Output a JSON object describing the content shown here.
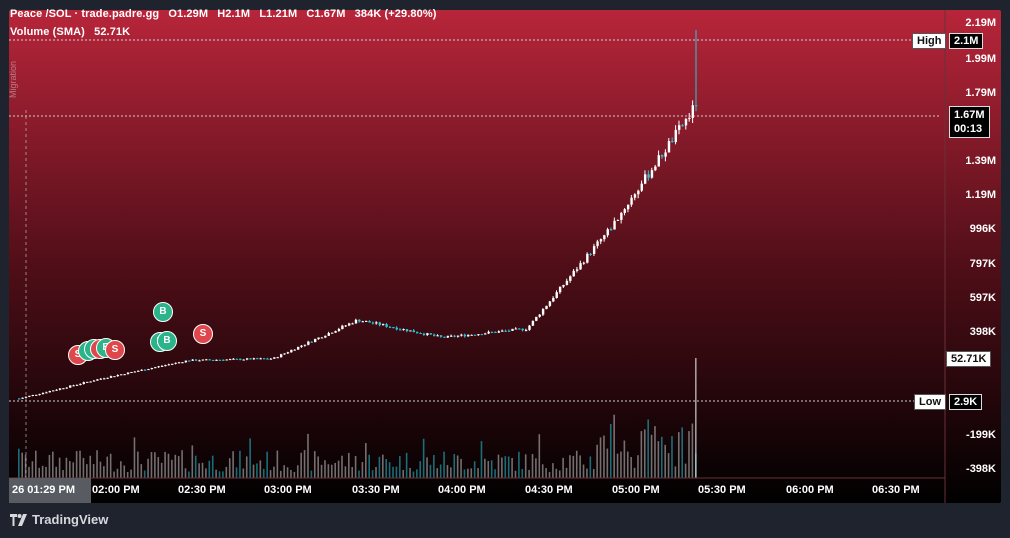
{
  "header": {
    "pair": "Peace /SOL · trade.padre.gg",
    "open": "O1.29M",
    "high": "H2.1M",
    "low": "L1.21M",
    "close": "C1.67M",
    "change": "384K (+29.80%)",
    "volume_label": "Volume (SMA)",
    "volume_value": "52.71K"
  },
  "migration_label": "Migration",
  "price_axis": {
    "ticks": [
      "2.19M",
      "1.99M",
      "1.79M",
      "1.39M",
      "1.19M",
      "996K",
      "797K",
      "597K",
      "398K",
      "-199K",
      "-398K"
    ],
    "high_label": "High",
    "high_value": "2.1M",
    "current_price": "1.67M",
    "countdown": "00:13",
    "volume_current": "52.71K",
    "low_label": "Low",
    "low_value": "2.9K"
  },
  "time_axis": {
    "cursor_label": "26   01:29 PM",
    "ticks": [
      "02:00 PM",
      "02:30 PM",
      "03:00 PM",
      "03:30 PM",
      "04:00 PM",
      "04:30 PM",
      "05:00 PM",
      "05:30 PM",
      "06:00 PM",
      "06:30 PM"
    ]
  },
  "markers": {
    "buy": "B",
    "sell": "S"
  },
  "brand": "TradingView",
  "colors": {
    "background_top": "#b8253a",
    "background_bottom": "#000000",
    "candle_up": "#ffffff",
    "candle_down": "#26c6da",
    "buy_marker": "#2bb48a",
    "sell_marker": "#e0474c"
  },
  "chart_data": {
    "type": "candlestick",
    "x": [
      "01:29 PM",
      "02:00 PM",
      "02:30 PM",
      "03:00 PM",
      "03:30 PM",
      "04:00 PM",
      "04:30 PM",
      "05:00 PM",
      "05:20 PM"
    ],
    "close": [
      2900,
      120000,
      220000,
      230000,
      450000,
      350000,
      400000,
      980000,
      1670000
    ],
    "high_value": 2100000,
    "low_value": 2900,
    "volume_sma": 52710
  }
}
